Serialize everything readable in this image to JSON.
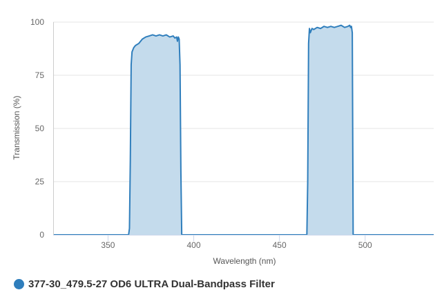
{
  "chart_data": {
    "type": "area",
    "xlabel": "Wavelength (nm)",
    "ylabel": "Transmission (%)",
    "xlim": [
      318,
      540
    ],
    "ylim": [
      0,
      100
    ],
    "x_ticks": [
      350,
      400,
      450,
      500
    ],
    "y_ticks": [
      0,
      25,
      50,
      75,
      100
    ],
    "grid": "horizontal",
    "legend_position": "bottom-left",
    "color": "#2f7ebc",
    "fill_color": "#c4dbec",
    "series": [
      {
        "name": "377-30_479.5-27 OD6 ULTRA Dual-Bandpass Filter",
        "x": [
          318,
          362,
          362.5,
          363,
          363.5,
          364,
          365,
          366,
          368,
          370,
          372,
          374,
          376,
          378,
          380,
          382,
          384,
          386,
          388,
          389,
          390,
          390.5,
          391,
          391.5,
          392,
          392.5,
          393,
          466,
          466.5,
          467,
          467.5,
          468,
          469,
          470,
          472,
          474,
          476,
          478,
          480,
          482,
          484,
          486,
          488,
          490,
          491,
          491.5,
          492,
          492.5,
          493,
          540
        ],
        "y": [
          0,
          0,
          3,
          35,
          80,
          86,
          88,
          89,
          90,
          92,
          93,
          93.5,
          94,
          93.5,
          94,
          93.5,
          94,
          93,
          93.5,
          92.5,
          93,
          91,
          93,
          92,
          80,
          30,
          0,
          0,
          25,
          90,
          97,
          95,
          97,
          96.5,
          97.5,
          97,
          98,
          97.5,
          98,
          97.5,
          98,
          98.5,
          97.5,
          98,
          98.5,
          97.5,
          98,
          95,
          0,
          0
        ]
      }
    ]
  }
}
